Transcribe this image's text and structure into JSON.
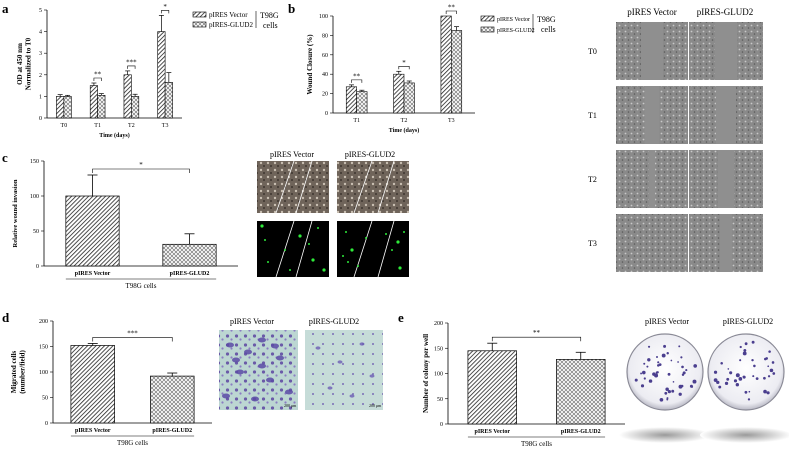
{
  "figure": {
    "panel_labels": [
      "a",
      "b",
      "c",
      "d",
      "e"
    ],
    "cell_line": "T98G",
    "cell_line_cells": "cells",
    "group_labels": [
      "pIRES Vector",
      "pIRES-GLUD2"
    ],
    "micrograph_titles": [
      "pIRES Vector",
      "pIRES-GLUD2"
    ],
    "timepoints_grid": [
      "T0",
      "T1",
      "T2",
      "T3"
    ],
    "xlabel_bottom": "T98G cells",
    "scale_bar_text": "200 μm"
  },
  "chart_data": [
    {
      "id": "a",
      "type": "bar",
      "categories": [
        "T0",
        "T1",
        "T2",
        "T3"
      ],
      "series": [
        {
          "name": "pIRES Vector",
          "values": [
            1.0,
            1.5,
            2.0,
            4.0
          ],
          "errors": [
            0.08,
            0.12,
            0.18,
            0.75
          ]
        },
        {
          "name": "pIRES-GLUD2",
          "values": [
            1.0,
            1.05,
            1.0,
            1.65
          ],
          "errors": [
            0.05,
            0.08,
            0.1,
            0.45
          ]
        }
      ],
      "ylabel": "OD at 450 nm\nNormalized to T0",
      "xlabel": "Time (days)",
      "ylim": [
        0,
        5
      ],
      "yticks": [
        0,
        1,
        2,
        3,
        4,
        5
      ],
      "significance": [
        {
          "cat": 1,
          "label": "**"
        },
        {
          "cat": 2,
          "label": "***"
        },
        {
          "cat": 3,
          "label": "*"
        }
      ],
      "legend": "top-right"
    },
    {
      "id": "b",
      "type": "bar",
      "categories": [
        "T1",
        "T2",
        "T3"
      ],
      "series": [
        {
          "name": "pIRES Vector",
          "values": [
            27,
            40,
            100
          ],
          "errors": [
            2,
            3,
            0
          ]
        },
        {
          "name": "pIRES-GLUD2",
          "values": [
            22,
            31,
            85
          ],
          "errors": [
            1.5,
            2,
            4
          ]
        }
      ],
      "ylabel": "Wound Closure (%)",
      "xlabel": "Time (days)",
      "ylim": [
        0,
        100
      ],
      "yticks": [
        0,
        20,
        40,
        60,
        80,
        100
      ],
      "significance": [
        {
          "cat": 0,
          "label": "**"
        },
        {
          "cat": 1,
          "label": "*"
        },
        {
          "cat": 2,
          "label": "**"
        }
      ],
      "legend": "top-right"
    },
    {
      "id": "c",
      "type": "bar",
      "categories": [
        "pIRES Vector",
        "pIRES-GLUD2"
      ],
      "values": [
        100,
        31
      ],
      "errors": [
        30,
        15
      ],
      "ylabel": "Relative wound invasion",
      "xlabel": "T98G cells",
      "ylim": [
        0,
        150
      ],
      "yticks": [
        0,
        50,
        100,
        150
      ],
      "significance": [
        {
          "from": 0,
          "to": 1,
          "label": "*"
        }
      ]
    },
    {
      "id": "d",
      "type": "bar",
      "categories": [
        "pIRES Vector",
        "pIRES-GLUD2"
      ],
      "values": [
        152,
        92
      ],
      "errors": [
        4,
        6
      ],
      "ylabel": "Migrated cells\n(number/field)",
      "xlabel": "T98G cells",
      "ylim": [
        0,
        200
      ],
      "yticks": [
        0,
        50,
        100,
        150,
        200
      ],
      "significance": [
        {
          "from": 0,
          "to": 1,
          "label": "***"
        }
      ]
    },
    {
      "id": "e",
      "type": "bar",
      "categories": [
        "pIRES Vector",
        "pIRES-GLUD2"
      ],
      "values": [
        145,
        128
      ],
      "errors": [
        15,
        14
      ],
      "ylabel": "Number of colony per well",
      "xlabel": "T98G cells",
      "ylim": [
        0,
        200
      ],
      "yticks": [
        0,
        50,
        100,
        150,
        200
      ],
      "significance": [
        {
          "from": 0,
          "to": 1,
          "label": "**"
        }
      ]
    }
  ]
}
